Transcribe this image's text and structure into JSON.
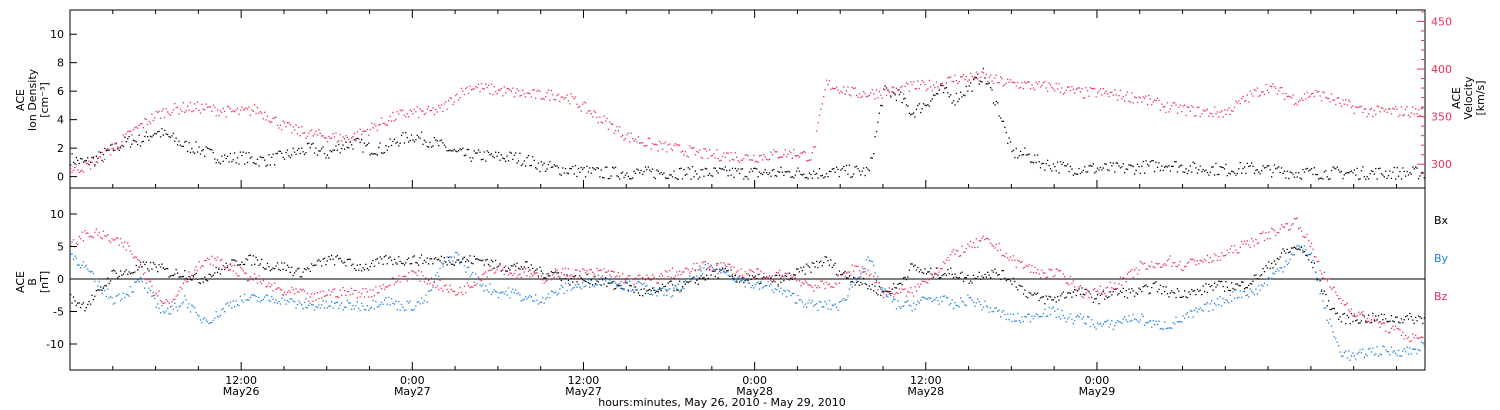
{
  "colors": {
    "black": "#000000",
    "pink": "#e8305a",
    "blue": "#1e7fe0"
  },
  "chart_data": [
    {
      "type": "scatter",
      "panel": "top",
      "left_ylabel": [
        "ACE",
        "Ion Density",
        "[cm⁻³]"
      ],
      "right_ylabel": [
        "ACE",
        "Velocity",
        "[km/s]"
      ],
      "ylim_left": [
        -0.8,
        11.7
      ],
      "ylim_right": [
        275,
        462
      ],
      "yticks_left": [
        "0",
        "2",
        "4",
        "6",
        "8",
        "10"
      ],
      "yticks_right": [
        "300",
        "350",
        "400",
        "450"
      ],
      "xlim_hours": [
        0,
        95
      ],
      "series": [
        {
          "color": "black",
          "axis": "left",
          "x": [
            0,
            1,
            2,
            3,
            4,
            5,
            6,
            7,
            8,
            9,
            10,
            11,
            12,
            13,
            14,
            15,
            16,
            17,
            18,
            19,
            20,
            21,
            22,
            23,
            24,
            25,
            26,
            27,
            28,
            29,
            30,
            31,
            32,
            33,
            34,
            35,
            36,
            37,
            38,
            39,
            40,
            41,
            42,
            43,
            44,
            45,
            46,
            47,
            48,
            49,
            50,
            51,
            52,
            53,
            54,
            55,
            56,
            57,
            58,
            59,
            60,
            61,
            62,
            63,
            64,
            65,
            66,
            67,
            68,
            69,
            70,
            71,
            72,
            73,
            74,
            75,
            76,
            77,
            78,
            79,
            80,
            81,
            82,
            83,
            84,
            85,
            86,
            87,
            88,
            89,
            90,
            91,
            92,
            93,
            94,
            95
          ],
          "y": [
            1.3,
            1.0,
            1.4,
            2.0,
            2.5,
            2.6,
            3.2,
            2.8,
            2.2,
            2.0,
            1.5,
            1.3,
            1.4,
            1.2,
            1.2,
            1.5,
            1.8,
            2.0,
            1.6,
            2.2,
            2.4,
            2.0,
            2.0,
            2.6,
            2.9,
            2.6,
            2.2,
            1.7,
            1.5,
            1.5,
            1.4,
            1.4,
            1.2,
            0.8,
            0.6,
            0.5,
            0.4,
            0.3,
            0.3,
            0.3,
            0.3,
            0.3,
            0.3,
            0.3,
            0.3,
            0.3,
            0.3,
            0.3,
            0.3,
            0.3,
            0.3,
            0.3,
            0.3,
            0.3,
            0.4,
            0.4,
            0.4,
            6.0,
            5.8,
            4.5,
            5.2,
            6.1,
            5.5,
            6.3,
            7.2,
            5.0,
            1.7,
            1.6,
            1.0,
            0.8,
            0.6,
            0.6,
            0.6,
            0.6,
            0.6,
            0.7,
            0.8,
            0.9,
            0.7,
            0.6,
            0.6,
            0.5,
            0.6,
            0.6,
            0.5,
            0.4,
            0.3,
            0.3,
            0.3,
            0.3,
            0.3,
            0.3,
            0.3,
            0.3,
            0.3,
            0.3
          ]
        },
        {
          "color": "pink",
          "axis": "right",
          "x": [
            0,
            1,
            2,
            3,
            4,
            5,
            6,
            7,
            8,
            9,
            10,
            11,
            12,
            13,
            14,
            15,
            16,
            17,
            18,
            19,
            20,
            21,
            22,
            23,
            24,
            25,
            26,
            27,
            28,
            29,
            30,
            31,
            32,
            33,
            34,
            35,
            36,
            37,
            38,
            39,
            40,
            41,
            42,
            43,
            44,
            45,
            46,
            47,
            48,
            49,
            50,
            51,
            52,
            53,
            54,
            55,
            56,
            57,
            58,
            59,
            60,
            61,
            62,
            63,
            64,
            65,
            66,
            67,
            68,
            69,
            70,
            71,
            72,
            73,
            74,
            75,
            76,
            77,
            78,
            79,
            80,
            81,
            82,
            83,
            84,
            85,
            86,
            87,
            88,
            89,
            90,
            91,
            92,
            93,
            94,
            95
          ],
          "y": [
            295,
            298,
            305,
            318,
            330,
            342,
            352,
            358,
            360,
            360,
            358,
            356,
            355,
            358,
            350,
            340,
            335,
            332,
            330,
            328,
            330,
            338,
            345,
            352,
            355,
            355,
            358,
            372,
            382,
            380,
            378,
            376,
            374,
            373,
            374,
            370,
            360,
            350,
            340,
            330,
            325,
            320,
            318,
            315,
            312,
            310,
            310,
            308,
            308,
            310,
            312,
            312,
            308,
            385,
            380,
            375,
            375,
            376,
            378,
            382,
            383,
            385,
            390,
            392,
            392,
            388,
            385,
            384,
            382,
            382,
            378,
            375,
            376,
            374,
            372,
            370,
            365,
            360,
            358,
            356,
            355,
            355,
            365,
            375,
            382,
            375,
            368,
            375,
            372,
            365,
            360,
            356,
            356,
            356,
            356,
            356
          ]
        }
      ]
    },
    {
      "type": "scatter",
      "panel": "bottom",
      "left_ylabel": [
        "ACE",
        "B",
        "[nT]"
      ],
      "legend": [
        "Bx",
        "By",
        "Bz"
      ],
      "legend_placement": "right",
      "ylim": [
        -14,
        14
      ],
      "yticks": [
        "-10",
        "-5",
        "0",
        "5",
        "10"
      ],
      "xlim_hours": [
        0,
        95
      ],
      "series": [
        {
          "name": "Bx",
          "color": "black",
          "x": [
            0,
            1,
            2,
            3,
            4,
            5,
            6,
            7,
            8,
            9,
            10,
            11,
            12,
            13,
            14,
            15,
            16,
            17,
            18,
            19,
            20,
            21,
            22,
            23,
            24,
            25,
            26,
            27,
            28,
            29,
            30,
            31,
            32,
            33,
            34,
            35,
            36,
            37,
            38,
            39,
            40,
            41,
            42,
            43,
            44,
            45,
            46,
            47,
            48,
            49,
            50,
            51,
            52,
            53,
            54,
            55,
            56,
            57,
            58,
            59,
            60,
            61,
            62,
            63,
            64,
            65,
            66,
            67,
            68,
            69,
            70,
            71,
            72,
            73,
            74,
            75,
            76,
            77,
            78,
            79,
            80,
            81,
            82,
            83,
            84,
            85,
            86,
            87,
            88,
            89,
            90,
            91,
            92,
            93,
            94,
            95
          ],
          "y": [
            -3,
            -4,
            -2,
            1,
            1,
            2,
            2,
            1,
            1,
            0,
            1,
            2,
            3,
            3,
            2,
            2,
            1,
            2,
            3,
            3,
            2,
            2,
            3,
            3,
            3,
            3,
            3,
            3,
            3,
            3,
            2,
            2,
            2,
            1,
            1,
            0,
            0,
            0,
            -1,
            -1,
            -2,
            -2,
            -1,
            -1,
            0,
            1,
            1,
            0,
            0,
            0,
            0,
            1,
            2,
            3,
            1,
            0,
            -1,
            -2,
            -1,
            2,
            1,
            1,
            1,
            0,
            1,
            1,
            0,
            -2,
            -3,
            -3,
            -2,
            -2,
            -3,
            -2,
            -2,
            -2,
            -1,
            -2,
            -2,
            -2,
            -1,
            -1,
            -1,
            0,
            2,
            4,
            5,
            3,
            -3,
            -6,
            -6,
            -6,
            -6,
            -6,
            -6,
            -6
          ]
        },
        {
          "name": "By",
          "color": "blue",
          "x": [
            0,
            1,
            2,
            3,
            4,
            5,
            6,
            7,
            8,
            9,
            10,
            11,
            12,
            13,
            14,
            15,
            16,
            17,
            18,
            19,
            20,
            21,
            22,
            23,
            24,
            25,
            26,
            27,
            28,
            29,
            30,
            31,
            32,
            33,
            34,
            35,
            36,
            37,
            38,
            39,
            40,
            41,
            42,
            43,
            44,
            45,
            46,
            47,
            48,
            49,
            50,
            51,
            52,
            53,
            54,
            55,
            56,
            57,
            58,
            59,
            60,
            61,
            62,
            63,
            64,
            65,
            66,
            67,
            68,
            69,
            70,
            71,
            72,
            73,
            74,
            75,
            76,
            77,
            78,
            79,
            80,
            81,
            82,
            83,
            84,
            85,
            86,
            87,
            88,
            89,
            90,
            91,
            92,
            93,
            94,
            95
          ],
          "y": [
            4,
            2,
            -1,
            -3,
            -2,
            0,
            -4,
            -5,
            -3,
            -6,
            -6,
            -4,
            -3,
            -3,
            -3,
            -3,
            -4,
            -4,
            -4,
            -4,
            -4,
            -4,
            -3,
            -4,
            -4,
            -3,
            2,
            4,
            1,
            -1,
            -2,
            -2,
            -3,
            -3,
            -2,
            -1,
            -1,
            0,
            0,
            -1,
            -1,
            -2,
            -2,
            -1,
            1,
            2,
            1,
            0,
            -1,
            -1,
            -2,
            -3,
            -4,
            -4,
            -4,
            0,
            3,
            -2,
            -4,
            -4,
            -3,
            -3,
            -4,
            -3,
            -4,
            -5,
            -6,
            -6,
            -5,
            -5,
            -6,
            -6,
            -7,
            -7,
            -6,
            -6,
            -7,
            -7,
            -6,
            -5,
            -4,
            -3,
            -2,
            -2,
            0,
            2,
            5,
            4,
            -5,
            -11,
            -12,
            -11,
            -11,
            -11,
            -11,
            -10
          ]
        },
        {
          "name": "Bz",
          "color": "pink",
          "x": [
            0,
            1,
            2,
            3,
            4,
            5,
            6,
            7,
            8,
            9,
            10,
            11,
            12,
            13,
            14,
            15,
            16,
            17,
            18,
            19,
            20,
            21,
            22,
            23,
            24,
            25,
            26,
            27,
            28,
            29,
            30,
            31,
            32,
            33,
            34,
            35,
            36,
            37,
            38,
            39,
            40,
            41,
            42,
            43,
            44,
            45,
            46,
            47,
            48,
            49,
            50,
            51,
            52,
            53,
            54,
            55,
            56,
            57,
            58,
            59,
            60,
            61,
            62,
            63,
            64,
            65,
            66,
            67,
            68,
            69,
            70,
            71,
            72,
            73,
            74,
            75,
            76,
            77,
            78,
            79,
            80,
            81,
            82,
            83,
            84,
            85,
            86,
            87,
            88,
            89,
            90,
            91,
            92,
            93,
            94,
            95
          ],
          "y": [
            5,
            7,
            7,
            6,
            5,
            2,
            -2,
            -4,
            0,
            2,
            3,
            2,
            1,
            0,
            -1,
            -2,
            -2,
            -3,
            -2,
            -2,
            -2,
            -2,
            -1,
            0,
            1,
            0,
            -1,
            -2,
            -1,
            1,
            2,
            1,
            1,
            0,
            1,
            1,
            1,
            1,
            1,
            0,
            0,
            0,
            1,
            1,
            2,
            2,
            2,
            1,
            1,
            0,
            1,
            0,
            -1,
            -1,
            0,
            2,
            1,
            -2,
            -2,
            -2,
            0,
            2,
            4,
            5,
            6,
            5,
            3,
            2,
            1,
            1,
            0,
            -2,
            -2,
            -1,
            0,
            2,
            2,
            3,
            2,
            3,
            3,
            4,
            5,
            6,
            7,
            8,
            9,
            5,
            0,
            -3,
            -5,
            -6,
            -7,
            -8,
            -9,
            -9
          ]
        }
      ]
    }
  ],
  "xaxis": {
    "ticks": [
      {
        "hour": 12,
        "time": "12:00",
        "date": "May26"
      },
      {
        "hour": 24,
        "time": "0:00",
        "date": "May27"
      },
      {
        "hour": 36,
        "time": "12:00",
        "date": "May27"
      },
      {
        "hour": 48,
        "time": "0:00",
        "date": "May28"
      },
      {
        "hour": 60,
        "time": "12:00",
        "date": "May28"
      },
      {
        "hour": 72,
        "time": "0:00",
        "date": "May29"
      }
    ],
    "minor_step_hours": 3,
    "label": "hours:minutes, May 26, 2010 - May 29, 2010"
  }
}
